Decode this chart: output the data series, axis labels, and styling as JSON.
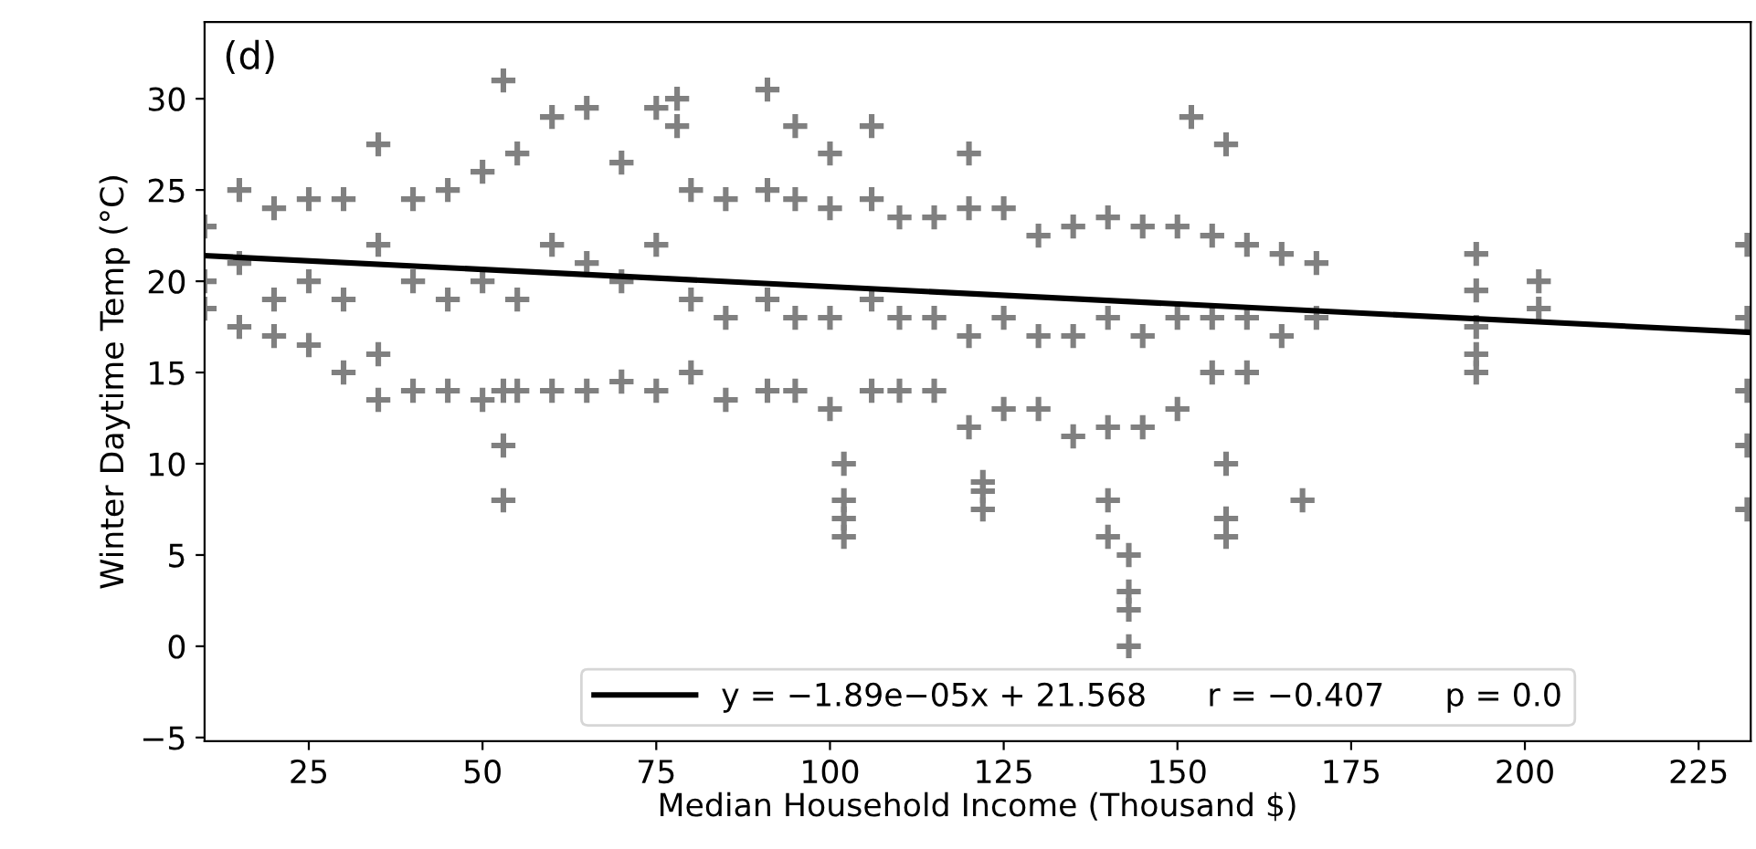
{
  "chart_data": {
    "type": "scatter",
    "xlabel": "Median Household Income (Thousand $)",
    "ylabel": "Winter Daytime Temp (°C)",
    "annotations": [
      "(d)"
    ],
    "xlim": [
      10,
      232.5
    ],
    "ylim": [
      -5.2,
      34.2
    ],
    "xticks": [
      25,
      50,
      75,
      100,
      125,
      150,
      175,
      200,
      225
    ],
    "yticks": [
      {
        "value": -5,
        "label": "−5"
      },
      0,
      5,
      10,
      15,
      20,
      25,
      30
    ],
    "grid": false,
    "legend": "bottom",
    "series": [
      {
        "marker": "cross",
        "color": "#808080",
        "x": [
          10,
          10,
          10,
          15,
          15,
          15,
          20,
          20,
          20,
          25,
          25,
          25,
          30,
          30,
          30,
          35,
          35,
          35,
          35,
          40,
          40,
          40,
          45,
          45,
          45,
          50,
          50,
          50,
          53,
          53,
          53,
          53,
          55,
          55,
          55,
          60,
          60,
          60,
          65,
          65,
          65,
          70,
          70,
          70,
          75,
          75,
          75,
          78,
          78,
          80,
          80,
          80,
          85,
          85,
          85,
          91,
          91,
          91,
          91,
          95,
          95,
          95,
          95,
          100,
          100,
          100,
          100,
          102,
          102,
          102,
          102,
          106,
          106,
          106,
          106,
          110,
          110,
          110,
          115,
          115,
          115,
          120,
          120,
          120,
          120,
          122,
          122,
          122,
          125,
          125,
          125,
          130,
          130,
          130,
          135,
          135,
          135,
          140,
          140,
          140,
          140,
          140,
          143,
          143,
          143,
          143,
          145,
          145,
          145,
          150,
          150,
          150,
          152,
          155,
          155,
          155,
          157,
          157,
          157,
          157,
          160,
          160,
          160,
          165,
          165,
          168,
          170,
          170,
          193,
          193,
          193,
          193,
          193,
          202,
          202,
          232,
          232,
          232,
          232,
          232
        ],
        "values": [
          23,
          20,
          18.5,
          25,
          21,
          17.5,
          24,
          19,
          17,
          24.5,
          20,
          16.5,
          24.5,
          19,
          15,
          27.5,
          22,
          16,
          13.5,
          24.5,
          20,
          14,
          25,
          19,
          14,
          26,
          20,
          13.5,
          31,
          14,
          11,
          8,
          27,
          19,
          14,
          29,
          22,
          14,
          29.5,
          21,
          14,
          26.5,
          20,
          14.5,
          29.5,
          22,
          14,
          30,
          28.5,
          25,
          19,
          15,
          24.5,
          18,
          13.5,
          30.5,
          25,
          19,
          14,
          28.5,
          24.5,
          18,
          14,
          27,
          24,
          18,
          13,
          10,
          8,
          7,
          6,
          28.5,
          24.5,
          19,
          14,
          23.5,
          18,
          14,
          23.5,
          18,
          14,
          27,
          24,
          17,
          12,
          9,
          8.5,
          7.5,
          24,
          18,
          13,
          22.5,
          17,
          13,
          23,
          17,
          11.5,
          23.5,
          18,
          12,
          8,
          6,
          5,
          3,
          2,
          0,
          23,
          17,
          12,
          23,
          18,
          13,
          29,
          22.5,
          18,
          15,
          27.5,
          10,
          7,
          6,
          22,
          18,
          15,
          21.5,
          17,
          8,
          21,
          18,
          21.5,
          19.5,
          17.5,
          16,
          15,
          20,
          18.5,
          22,
          18,
          14,
          11,
          7.5
        ]
      },
      {
        "type": "line",
        "name": "y = −1.89e−05x + 21.568      r = −0.407      p = 0.0",
        "color": "#000000",
        "x": [
          10,
          232.5
        ],
        "values": [
          21.4,
          17.2
        ]
      }
    ]
  }
}
